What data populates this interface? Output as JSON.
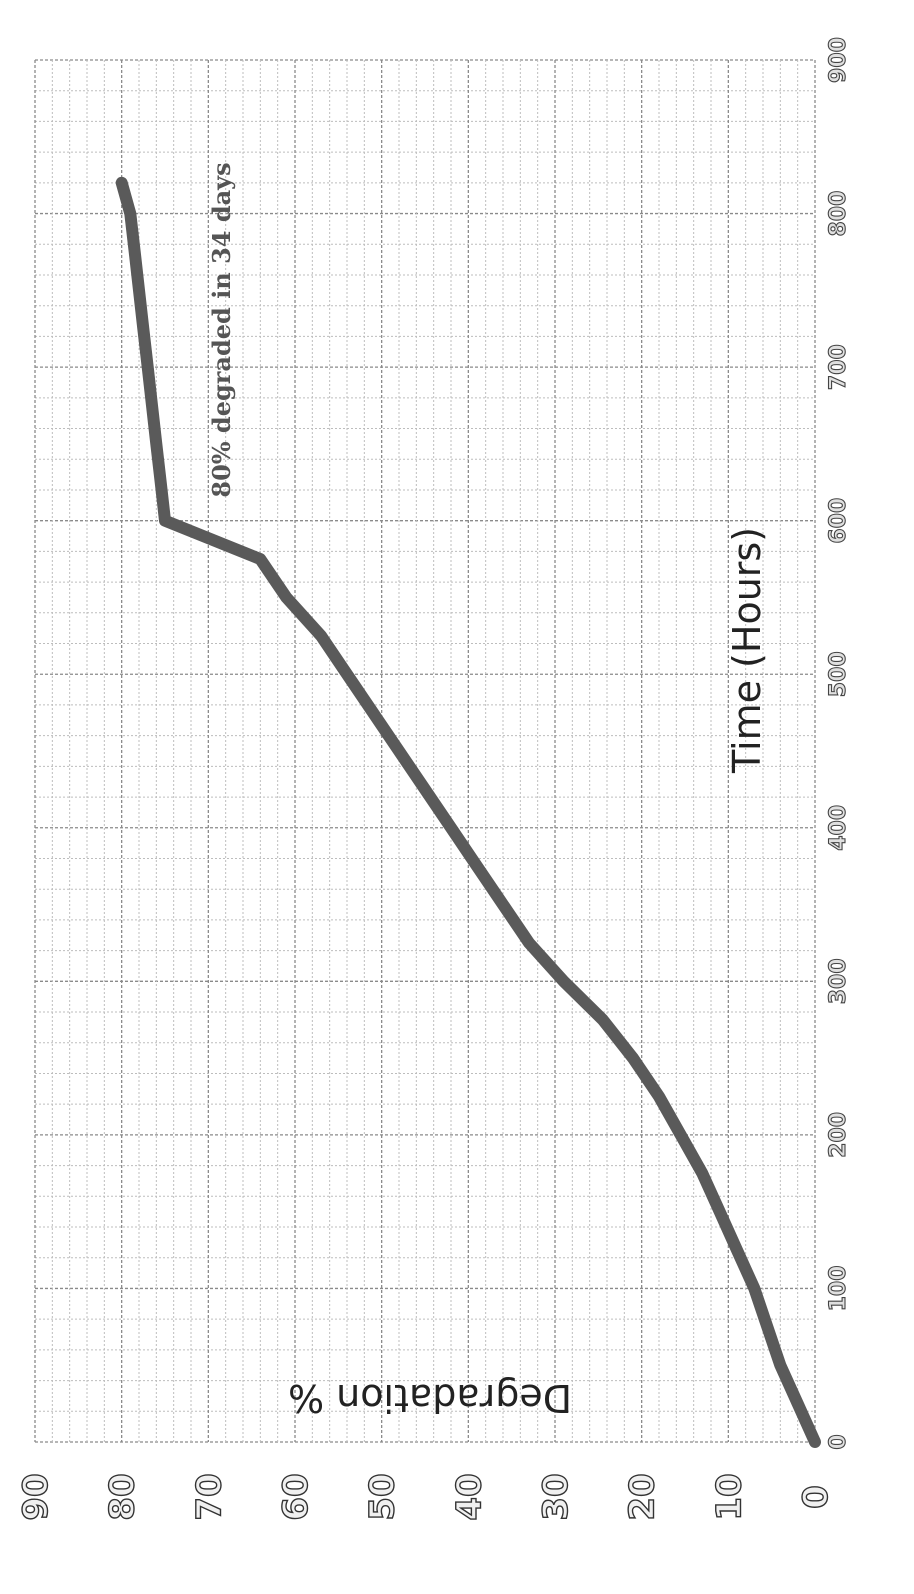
{
  "chart_data": {
    "type": "line",
    "orientation": "rotated 90° clockwise",
    "xlabel": "Time (Hours)",
    "ylabel": "Degradation %",
    "annotation": "80% degraded in 34 days",
    "xlim": [
      0,
      900
    ],
    "ylim": [
      0,
      90
    ],
    "x_ticks": [
      "0",
      "100",
      "200",
      "300",
      "400",
      "500",
      "600",
      "700",
      "800",
      "900"
    ],
    "y_ticks": [
      "0",
      "10",
      "20",
      "30",
      "40",
      "50",
      "60",
      "70",
      "80",
      "90"
    ],
    "grid": true,
    "line_color": "#5a5a5a",
    "series": [
      {
        "x": [
          0,
          25,
          50,
          75,
          100,
          125,
          150,
          175,
          200,
          225,
          250,
          275,
          300,
          325,
          350,
          375,
          400,
          425,
          450,
          475,
          500,
          525,
          550,
          575,
          600,
          625,
          650,
          675,
          700,
          725,
          750,
          775,
          800,
          820
        ],
        "y": [
          0,
          2,
          4,
          5.5,
          7,
          9,
          11,
          13,
          15.5,
          18,
          21,
          24.5,
          29,
          33,
          36,
          39,
          42,
          45,
          48,
          51,
          54,
          57,
          61,
          64,
          75,
          75.5,
          76,
          76.5,
          77,
          77.5,
          78,
          78.5,
          79,
          80
        ]
      }
    ]
  }
}
